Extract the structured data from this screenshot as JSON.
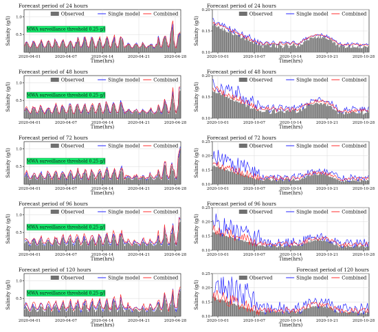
{
  "legend": {
    "observed": "Observed",
    "single": "Single model",
    "combined": "Combined"
  },
  "colors": {
    "observed": "#707070",
    "single": "#2323ff",
    "combined": "#ff2b2b",
    "threshold_box": "#16e66b",
    "grid": "#d9d9d9"
  },
  "threshold": {
    "label": "MWA surveillance threshold 0.25 g/l",
    "value": 0.25
  },
  "chart_data": [
    {
      "id": "a1",
      "type": "bar",
      "title": "Forecast period of 24 hours",
      "title_align": "left",
      "xlabel": "Time(hrs)",
      "ylabel": "Salinity (g/l)",
      "ylim": [
        0,
        1.2
      ],
      "yticks": [
        "0.5",
        "1.0"
      ],
      "ytick_values": [
        0.5,
        1.0
      ],
      "xticks": [
        "2020-04-01",
        "2020-04-07",
        "2020-04-14",
        "2020-04-21",
        "2020-04-28"
      ],
      "grid": true,
      "legend_position": "top",
      "threshold_shown": true,
      "series": [
        {
          "name": "Observed"
        },
        {
          "name": "Single model"
        },
        {
          "name": "Combined"
        }
      ]
    },
    {
      "id": "b1",
      "type": "bar",
      "title": "Forecast period of 24 hours",
      "title_align": "left",
      "xlabel": "Time(hrs)",
      "ylabel": "Salinity (g/l)",
      "ylim": [
        0.1,
        0.2
      ],
      "yticks": [
        "0.10",
        "0.15",
        "0.20"
      ],
      "ytick_values": [
        0.1,
        0.15,
        0.2
      ],
      "xticks": [
        "2020-10-01",
        "2020-10-07",
        "2020-10-14",
        "2020-10-21",
        "2020-10-28"
      ],
      "grid": true,
      "legend_position": "top",
      "threshold_shown": false,
      "series": [
        {
          "name": "Observed"
        },
        {
          "name": "Single model"
        },
        {
          "name": "Combined"
        }
      ]
    },
    {
      "id": "a2",
      "type": "bar",
      "title": "Forecast period of 48 hours",
      "title_align": "left",
      "xlabel": "Time(hrs)",
      "ylabel": "Salinity (g/l)",
      "ylim": [
        0,
        1.2
      ],
      "yticks": [
        "0.5",
        "1.0"
      ],
      "ytick_values": [
        0.5,
        1.0
      ],
      "xticks": [
        "2020-04-01",
        "2020-04-07",
        "2020-04-14",
        "2020-04-21",
        "2020-04-28"
      ],
      "grid": true,
      "legend_position": "top",
      "threshold_shown": true,
      "series": [
        {
          "name": "Observed"
        },
        {
          "name": "Single model"
        },
        {
          "name": "Combined"
        }
      ]
    },
    {
      "id": "b2",
      "type": "bar",
      "title": "Forecast period of 48 hours",
      "title_align": "left",
      "xlabel": "Time(hrs)",
      "ylabel": "Salinity (g/l)",
      "ylim": [
        0.1,
        0.2
      ],
      "yticks": [
        "0.10",
        "0.15",
        "0.20"
      ],
      "ytick_values": [
        0.1,
        0.15,
        0.2
      ],
      "xticks": [
        "2020-10-01",
        "2020-10-07",
        "2020-10-14",
        "2020-10-21",
        "2020-10-28"
      ],
      "grid": true,
      "legend_position": "top",
      "threshold_shown": false,
      "series": [
        {
          "name": "Observed"
        },
        {
          "name": "Single model"
        },
        {
          "name": "Combined"
        }
      ]
    },
    {
      "id": "a3",
      "type": "bar",
      "title": "Forecast period of 72 hours",
      "title_align": "left",
      "xlabel": "Time(hrs)",
      "ylabel": "Salinity (g/l)",
      "ylim": [
        0,
        1.2
      ],
      "yticks": [
        "0.5",
        "1.0"
      ],
      "ytick_values": [
        0.5,
        1.0
      ],
      "xticks": [
        "2020-04-01",
        "2020-04-07",
        "2020-04-14",
        "2020-04-21",
        "2020-04-28"
      ],
      "grid": true,
      "legend_position": "top",
      "threshold_shown": true,
      "series": [
        {
          "name": "Observed"
        },
        {
          "name": "Single model"
        },
        {
          "name": "Combined"
        }
      ]
    },
    {
      "id": "b3",
      "type": "bar",
      "title": "Forecast period of 72 hours",
      "title_align": "left",
      "xlabel": "Time(hrs)",
      "ylabel": "Salinity (g/l)",
      "ylim": [
        0.1,
        0.25
      ],
      "yticks": [
        "0.10",
        "0.15",
        "0.20",
        "0.25"
      ],
      "ytick_values": [
        0.1,
        0.15,
        0.2,
        0.25
      ],
      "xticks": [
        "2020-10-01",
        "2020-10-07",
        "2020-10-14",
        "2020-10-21",
        "2020-10-28"
      ],
      "grid": true,
      "legend_position": "top",
      "threshold_shown": false,
      "series": [
        {
          "name": "Observed"
        },
        {
          "name": "Single model"
        },
        {
          "name": "Combined"
        }
      ]
    },
    {
      "id": "a4",
      "type": "bar",
      "title": "Forecast period of 96 hours",
      "title_align": "left",
      "xlabel": "Time(hrs)",
      "ylabel": "Salinity (g/l)",
      "ylim": [
        0,
        1.2
      ],
      "yticks": [
        "0.5",
        "1.0"
      ],
      "ytick_values": [
        0.5,
        1.0
      ],
      "xticks": [
        "2020-04-01",
        "2020-04-07",
        "2020-04-14",
        "2020-04-21",
        "2020-04-28"
      ],
      "grid": true,
      "legend_position": "top",
      "threshold_shown": true,
      "series": [
        {
          "name": "Observed"
        },
        {
          "name": "Single model"
        },
        {
          "name": "Combined"
        }
      ]
    },
    {
      "id": "b4",
      "type": "bar",
      "title": "Forecast period of 96 hours",
      "title_align": "left",
      "xlabel": "Time(hrs)",
      "ylabel": "Salinity (g/l)",
      "ylim": [
        0.1,
        0.25
      ],
      "yticks": [
        "0.10",
        "0.15",
        "0.20",
        "0.25"
      ],
      "ytick_values": [
        0.1,
        0.15,
        0.2,
        0.25
      ],
      "xticks": [
        "2020-10-01",
        "2020-10-07",
        "2020-10-14",
        "2020-10-21",
        "2020-10-28"
      ],
      "grid": true,
      "legend_position": "top",
      "threshold_shown": false,
      "series": [
        {
          "name": "Observed"
        },
        {
          "name": "Single model"
        },
        {
          "name": "Combined"
        }
      ]
    },
    {
      "id": "a5",
      "type": "bar",
      "title": "Forecast period of 120 hours",
      "title_align": "left",
      "xlabel": "Time(hrs)",
      "ylabel": "Salinity (g/l)",
      "ylim": [
        0,
        1.2
      ],
      "yticks": [
        "0.5",
        "1.0"
      ],
      "ytick_values": [
        0.5,
        1.0
      ],
      "xticks": [
        "2020-04-01",
        "2020-04-07",
        "2020-04-14",
        "2020-04-21",
        "2020-04-28"
      ],
      "grid": true,
      "legend_position": "top",
      "threshold_shown": true,
      "series": [
        {
          "name": "Observed"
        },
        {
          "name": "Single model"
        },
        {
          "name": "Combined"
        }
      ]
    },
    {
      "id": "b5",
      "type": "bar",
      "title": "Forecast period of 120 hours",
      "title_align": "right",
      "xlabel": "Time(hrs)",
      "ylabel": "Salinity (g/l)",
      "ylim": [
        0.1,
        0.25
      ],
      "yticks": [
        "0.10",
        "0.15",
        "0.20",
        "0.25"
      ],
      "ytick_values": [
        0.1,
        0.15,
        0.2,
        0.25
      ],
      "xticks": [
        "2020-10-01",
        "2020-10-07",
        "2020-10-14",
        "2020-10-21",
        "2020-10-28"
      ],
      "grid": true,
      "legend_position": "top",
      "threshold_shown": false,
      "series": [
        {
          "name": "Observed"
        },
        {
          "name": "Single model"
        },
        {
          "name": "Combined"
        }
      ]
    }
  ]
}
